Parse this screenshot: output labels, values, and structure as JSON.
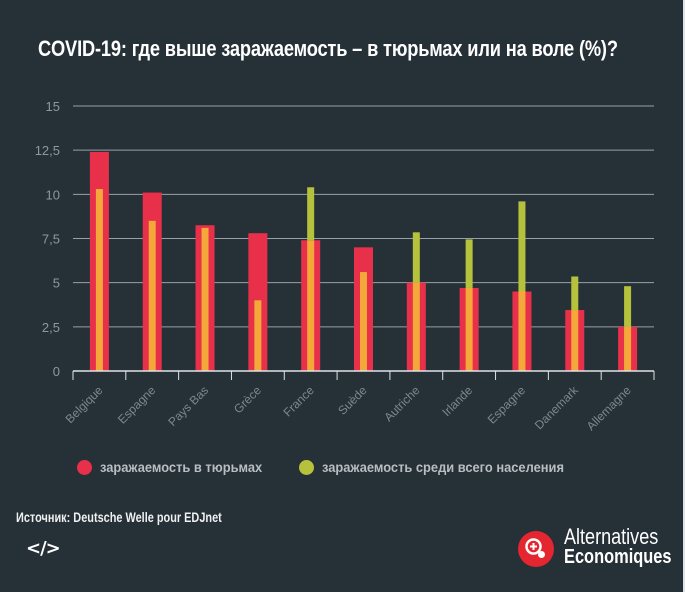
{
  "title": "COVID-19: где выше заражаемость – в тюрьмах или на воле (%)?",
  "colors": {
    "background": "#263037",
    "prisons": "#e8304a",
    "population": "#b7c23c",
    "overlap": "#f5a83a",
    "grid": "#9aa1a6",
    "axis": "#dfe3e5"
  },
  "chart_data": {
    "type": "bar",
    "title": "COVID-19: где выше заражаемость – в тюрьмах или на воле (%)?",
    "xlabel": "",
    "ylabel": "",
    "ylim": [
      0,
      15
    ],
    "yticks": [
      0,
      2.5,
      5,
      7.5,
      10,
      12.5,
      15
    ],
    "ytick_labels": [
      "0",
      "2,5",
      "5",
      "7,5",
      "10",
      "12,5",
      "15"
    ],
    "grid": true,
    "categories": [
      "Belgique",
      "Espagne",
      "Pays Bas",
      "Grèce",
      "France",
      "Suède",
      "Autriche",
      "Irlande",
      "Espagne",
      "Danemark",
      "Allemagne"
    ],
    "series": [
      {
        "name": "заражаемость в тюрьмах",
        "values": [
          12.4,
          10.1,
          8.25,
          7.8,
          7.4,
          7.0,
          5.0,
          4.7,
          4.5,
          3.45,
          2.5
        ]
      },
      {
        "name": "заражаемость среди всего населения",
        "values": [
          10.3,
          8.5,
          8.1,
          4.0,
          10.4,
          5.6,
          7.85,
          7.45,
          9.6,
          5.35,
          4.8
        ]
      }
    ],
    "legend": "bottom"
  },
  "legend": [
    {
      "label": "заражаемость в тюрьмах",
      "color": "#e8304a"
    },
    {
      "label": "заражаемость среди всего населения",
      "color": "#b7c23c"
    }
  ],
  "footer": {
    "source": "Источник: Deutsche Welle pour EDJnet",
    "embed_icon": "code-embed-icon",
    "embed_glyph": "</>",
    "brand_line1": "Alternatives",
    "brand_line2": "Economiques",
    "brand_icon": "magnifier-plus-icon"
  }
}
